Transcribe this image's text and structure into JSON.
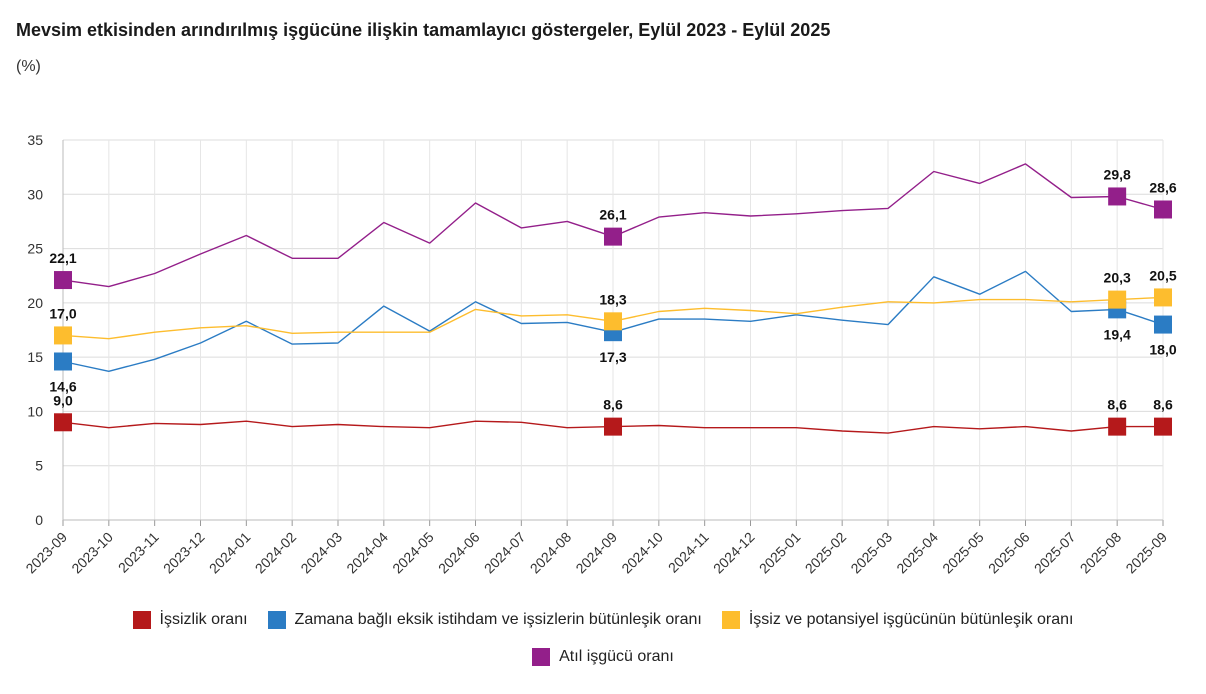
{
  "chart_data": {
    "type": "line",
    "title": "Mevsim etkisinden arındırılmış işgücüne ilişkin tamamlayıcı göstergeler, Eylül 2023 - Eylül 2025",
    "subtitle": "(%)",
    "ylim": [
      0,
      35
    ],
    "yticks": [
      "0",
      "5",
      "10",
      "15",
      "20",
      "25",
      "30",
      "35"
    ],
    "grid": true,
    "legend_position": "bottom",
    "categories": [
      "2023-09",
      "2023-10",
      "2023-11",
      "2023-12",
      "2024-01",
      "2024-02",
      "2024-03",
      "2024-04",
      "2024-05",
      "2024-06",
      "2024-07",
      "2024-08",
      "2024-09",
      "2024-10",
      "2024-11",
      "2024-12",
      "2025-01",
      "2025-02",
      "2025-03",
      "2025-04",
      "2025-05",
      "2025-06",
      "2025-07",
      "2025-08",
      "2025-09"
    ],
    "series": [
      {
        "name": "İşsizlik oranı",
        "color": "#b5191b",
        "values": [
          9.0,
          8.5,
          8.9,
          8.8,
          9.1,
          8.6,
          8.8,
          8.6,
          8.5,
          9.1,
          9.0,
          8.5,
          8.6,
          8.7,
          8.5,
          8.5,
          8.5,
          8.2,
          8.0,
          8.6,
          8.4,
          8.6,
          8.2,
          8.6,
          8.6
        ],
        "labels": [
          {
            "index": 0,
            "text": "9,0",
            "pos": "above"
          },
          {
            "index": 12,
            "text": "8,6",
            "pos": "above"
          },
          {
            "index": 23,
            "text": "8,6",
            "pos": "above"
          },
          {
            "index": 24,
            "text": "8,6",
            "pos": "above"
          }
        ]
      },
      {
        "name": "Zamana bağlı eksik istihdam ve işsizlerin bütünleşik oranı",
        "color": "#2b7cc4",
        "values": [
          14.6,
          13.7,
          14.8,
          16.3,
          18.3,
          16.2,
          16.3,
          19.7,
          17.4,
          20.1,
          18.1,
          18.2,
          17.3,
          18.5,
          18.5,
          18.3,
          18.9,
          18.4,
          18.0,
          22.4,
          20.8,
          22.9,
          19.2,
          19.4,
          18.0
        ],
        "labels": [
          {
            "index": 0,
            "text": "14,6",
            "pos": "below"
          },
          {
            "index": 12,
            "text": "17,3",
            "pos": "below"
          },
          {
            "index": 23,
            "text": "19,4",
            "pos": "below"
          },
          {
            "index": 24,
            "text": "18,0",
            "pos": "below"
          }
        ]
      },
      {
        "name": "İşsiz ve potansiyel işgücünün bütünleşik oranı",
        "color": "#fdbd2e",
        "values": [
          17.0,
          16.7,
          17.3,
          17.7,
          17.9,
          17.2,
          17.3,
          17.3,
          17.3,
          19.4,
          18.8,
          18.9,
          18.3,
          19.2,
          19.5,
          19.3,
          19.0,
          19.6,
          20.1,
          20.0,
          20.3,
          20.3,
          20.1,
          20.3,
          20.5
        ],
        "labels": [
          {
            "index": 0,
            "text": "17,0",
            "pos": "above"
          },
          {
            "index": 12,
            "text": "18,3",
            "pos": "above"
          },
          {
            "index": 23,
            "text": "20,3",
            "pos": "above"
          },
          {
            "index": 24,
            "text": "20,5",
            "pos": "above"
          }
        ]
      },
      {
        "name": "Atıl işgücü oranı",
        "color": "#931f8a",
        "values": [
          22.1,
          21.5,
          22.7,
          24.5,
          26.2,
          24.1,
          24.1,
          27.4,
          25.5,
          29.2,
          26.9,
          27.5,
          26.1,
          27.9,
          28.3,
          28.0,
          28.2,
          28.5,
          28.7,
          32.1,
          31.0,
          32.8,
          29.7,
          29.8,
          28.6
        ],
        "labels": [
          {
            "index": 0,
            "text": "22,1",
            "pos": "above"
          },
          {
            "index": 12,
            "text": "26,1",
            "pos": "above"
          },
          {
            "index": 23,
            "text": "29,8",
            "pos": "above"
          },
          {
            "index": 24,
            "text": "28,6",
            "pos": "above"
          }
        ]
      }
    ]
  }
}
